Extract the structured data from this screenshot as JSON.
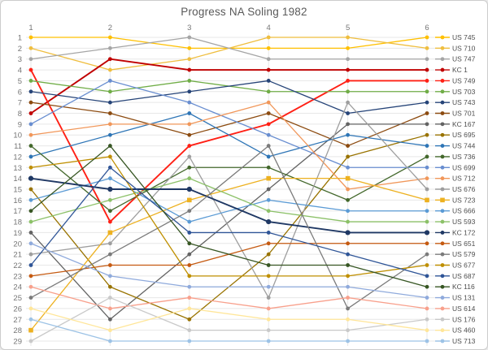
{
  "chart_data": {
    "type": "line",
    "title": "Progress NA Soling 1982",
    "subtitle": "",
    "x_axis": {
      "position": "top",
      "ticks": [
        "1",
        "2",
        "3",
        "4",
        "5",
        "6"
      ]
    },
    "y_axis": {
      "inverted": true,
      "range": [
        1,
        29
      ],
      "ticks": [
        "1",
        "2",
        "3",
        "4",
        "5",
        "6",
        "7",
        "8",
        "9",
        "10",
        "11",
        "12",
        "13",
        "14",
        "15",
        "16",
        "17",
        "18",
        "19",
        "20",
        "21",
        "22",
        "23",
        "24",
        "25",
        "26",
        "27",
        "28",
        "29"
      ]
    },
    "legend_position": "right",
    "grid": true,
    "series": [
      {
        "name": "US 745",
        "color": "#FFC000",
        "marker": "circle",
        "ranks": [
          1,
          1,
          2,
          2,
          2,
          1
        ]
      },
      {
        "name": "US 710",
        "color": "#EFBE3F",
        "marker": "circle",
        "ranks": [
          2,
          4,
          3,
          1,
          1,
          2
        ]
      },
      {
        "name": "US 747",
        "color": "#A5A5A5",
        "marker": "circle",
        "ranks": [
          3,
          2,
          1,
          3,
          3,
          3
        ]
      },
      {
        "name": "KC 1",
        "color": "#C00000",
        "marker": "circle",
        "ranks": [
          8,
          3,
          4,
          4,
          4,
          4
        ]
      },
      {
        "name": "US 749",
        "color": "#FF2015",
        "marker": "circle",
        "ranks": [
          4,
          18,
          11,
          9,
          5,
          5
        ]
      },
      {
        "name": "US 703",
        "color": "#70AD47",
        "marker": "circle",
        "ranks": [
          5,
          6,
          5,
          6,
          6,
          6
        ]
      },
      {
        "name": "US 743",
        "color": "#264478",
        "marker": "circle",
        "ranks": [
          6,
          7,
          6,
          5,
          8,
          7
        ]
      },
      {
        "name": "US 701",
        "color": "#8C4B10",
        "marker": "circle",
        "ranks": [
          7,
          8,
          10,
          8,
          11,
          8
        ]
      },
      {
        "name": "KC 167",
        "color": "#636363",
        "marker": "circle",
        "ranks": [
          19,
          27,
          21,
          15,
          9,
          9
        ]
      },
      {
        "name": "US 695",
        "color": "#997300",
        "marker": "circle",
        "ranks": [
          15,
          24,
          27,
          21,
          12,
          10
        ]
      },
      {
        "name": "US 744",
        "color": "#2E75B6",
        "marker": "circle",
        "ranks": [
          12,
          10,
          8,
          12,
          10,
          11
        ]
      },
      {
        "name": "US 736",
        "color": "#43682B",
        "marker": "circle",
        "ranks": [
          11,
          17,
          13,
          13,
          16,
          12
        ]
      },
      {
        "name": "US 699",
        "color": "#698ED0",
        "marker": "circle",
        "ranks": [
          9,
          5,
          7,
          10,
          13,
          13
        ]
      },
      {
        "name": "US 712",
        "color": "#F1975A",
        "marker": "circle",
        "ranks": [
          10,
          9,
          9,
          7,
          15,
          14
        ]
      },
      {
        "name": "US 676",
        "color": "#9E9E9E",
        "marker": "circle",
        "ranks": [
          21,
          20,
          12,
          25,
          7,
          15
        ]
      },
      {
        "name": "US 723",
        "color": "#EDB120",
        "marker": "square",
        "ranks": [
          28,
          19,
          16,
          14,
          14,
          16
        ]
      },
      {
        "name": "US 666",
        "color": "#5B9BD5",
        "marker": "circle",
        "ranks": [
          16,
          14,
          18,
          16,
          17,
          17
        ]
      },
      {
        "name": "US 593",
        "color": "#8CC168",
        "marker": "circle",
        "ranks": [
          18,
          16,
          14,
          17,
          18,
          18
        ]
      },
      {
        "name": "KC 172",
        "color": "#1F3864",
        "marker": "circle",
        "ranks": [
          14,
          15,
          15,
          18,
          19,
          19
        ]
      },
      {
        "name": "US 651",
        "color": "#C55A11",
        "marker": "circle",
        "ranks": [
          23,
          22,
          22,
          20,
          20,
          20
        ]
      },
      {
        "name": "US 579",
        "color": "#7B7B7B",
        "marker": "circle",
        "ranks": [
          25,
          21,
          17,
          11,
          26,
          21
        ]
      },
      {
        "name": "US 677",
        "color": "#BF8F00",
        "marker": "circle",
        "ranks": [
          13,
          12,
          23,
          23,
          23,
          22
        ]
      },
      {
        "name": "US 687",
        "color": "#2F5597",
        "marker": "circle",
        "ranks": [
          22,
          13,
          19,
          19,
          21,
          23
        ]
      },
      {
        "name": "KC 116",
        "color": "#375623",
        "marker": "circle",
        "ranks": [
          17,
          11,
          20,
          22,
          22,
          24
        ]
      },
      {
        "name": "US 131",
        "color": "#8FAADC",
        "marker": "circle",
        "ranks": [
          20,
          23,
          24,
          24,
          24,
          25
        ]
      },
      {
        "name": "US 614",
        "color": "#F8A08C",
        "marker": "circle",
        "ranks": [
          24,
          26,
          25,
          26,
          25,
          26
        ]
      },
      {
        "name": "US 176",
        "color": "#C9C9C9",
        "marker": "circle",
        "ranks": [
          29,
          25,
          28,
          28,
          28,
          27
        ]
      },
      {
        "name": "US 460",
        "color": "#FFE699",
        "marker": "circle",
        "ranks": [
          26,
          28,
          26,
          27,
          27,
          28
        ]
      },
      {
        "name": "US 713",
        "color": "#9DC3E6",
        "marker": "circle",
        "ranks": [
          27,
          29,
          29,
          29,
          29,
          29
        ]
      }
    ],
    "style": {
      "grid_color": "#E7E7E7",
      "axis_label_color": "#757575",
      "legend_text_color": "#4d4d4d",
      "title_color": "#595959",
      "background": "#ffffff",
      "frame_border": "#cccccc"
    }
  }
}
